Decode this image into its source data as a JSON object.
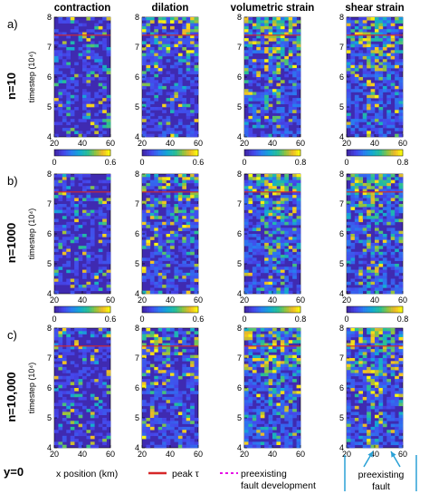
{
  "figure": {
    "column_titles": [
      "contraction",
      "dilation",
      "volumetric strain",
      "shear strain"
    ],
    "row_panel_labels": [
      "a)",
      "b)",
      "c)"
    ],
    "row_case_labels": [
      "n=10",
      "n=1000",
      "n=10,000"
    ],
    "y_axis_label": "timestep (10⁴)",
    "x_axis_label": "x position (km)",
    "footer_case_label": "y=0",
    "legend": {
      "peak_label": "peak τ",
      "peak_color": "#d62728",
      "fault_dev_label_line1": "preexisting",
      "fault_dev_label_line2": "fault development",
      "fault_dev_color": "#e60fe6",
      "preexisting_fault_label_line1": "preexisting",
      "preexisting_fault_label_line2": "fault",
      "arrow_color": "#2aa1d6"
    }
  },
  "chart_data": {
    "type": "heatmap",
    "colormap": "parula",
    "x_axis": {
      "label": "x position (km)",
      "range": [
        20,
        60
      ],
      "ticks": [
        20,
        40,
        60
      ]
    },
    "y_axis": {
      "label": "timestep (10⁴)",
      "range": [
        4,
        8
      ],
      "ticks": [
        4,
        5,
        6,
        7,
        8
      ]
    },
    "colorbars": [
      {
        "panel": "contraction",
        "range": [
          0,
          0.6
        ],
        "tick_labels": [
          "0",
          "0.6"
        ]
      },
      {
        "panel": "dilation",
        "range": [
          0,
          0.6
        ],
        "tick_labels": [
          "0",
          "0.6"
        ]
      },
      {
        "panel": "volumetric strain",
        "range": [
          0,
          0.8
        ],
        "tick_labels": [
          "0",
          "0.8"
        ]
      },
      {
        "panel": "shear strain",
        "range": [
          0,
          0.8
        ],
        "tick_labels": [
          "0",
          "0.8"
        ]
      }
    ],
    "peak_shear_stress_timestep": 7.4
  }
}
